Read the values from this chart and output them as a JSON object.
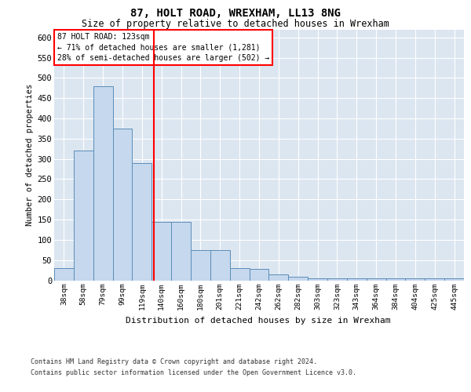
{
  "title": "87, HOLT ROAD, WREXHAM, LL13 8NG",
  "subtitle": "Size of property relative to detached houses in Wrexham",
  "xlabel": "Distribution of detached houses by size in Wrexham",
  "ylabel": "Number of detached properties",
  "categories": [
    "38sqm",
    "58sqm",
    "79sqm",
    "99sqm",
    "119sqm",
    "140sqm",
    "160sqm",
    "180sqm",
    "201sqm",
    "221sqm",
    "242sqm",
    "262sqm",
    "282sqm",
    "303sqm",
    "323sqm",
    "343sqm",
    "364sqm",
    "384sqm",
    "404sqm",
    "425sqm",
    "445sqm"
  ],
  "values": [
    30,
    320,
    480,
    375,
    290,
    145,
    145,
    75,
    75,
    30,
    28,
    15,
    8,
    5,
    5,
    5,
    5,
    5,
    5,
    5,
    5
  ],
  "bar_color": "#c5d8ed",
  "bar_edge_color": "#5b8db8",
  "background_color": "#dce6f1",
  "property_label": "87 HOLT ROAD: 123sqm",
  "annotation_line1": "← 71% of detached houses are smaller (1,281)",
  "annotation_line2": "28% of semi-detached houses are larger (502) →",
  "vline_x_index": 4.62,
  "ylim": [
    0,
    620
  ],
  "yticks": [
    0,
    50,
    100,
    150,
    200,
    250,
    300,
    350,
    400,
    450,
    500,
    550,
    600
  ],
  "footer_line1": "Contains HM Land Registry data © Crown copyright and database right 2024.",
  "footer_line2": "Contains public sector information licensed under the Open Government Licence v3.0."
}
